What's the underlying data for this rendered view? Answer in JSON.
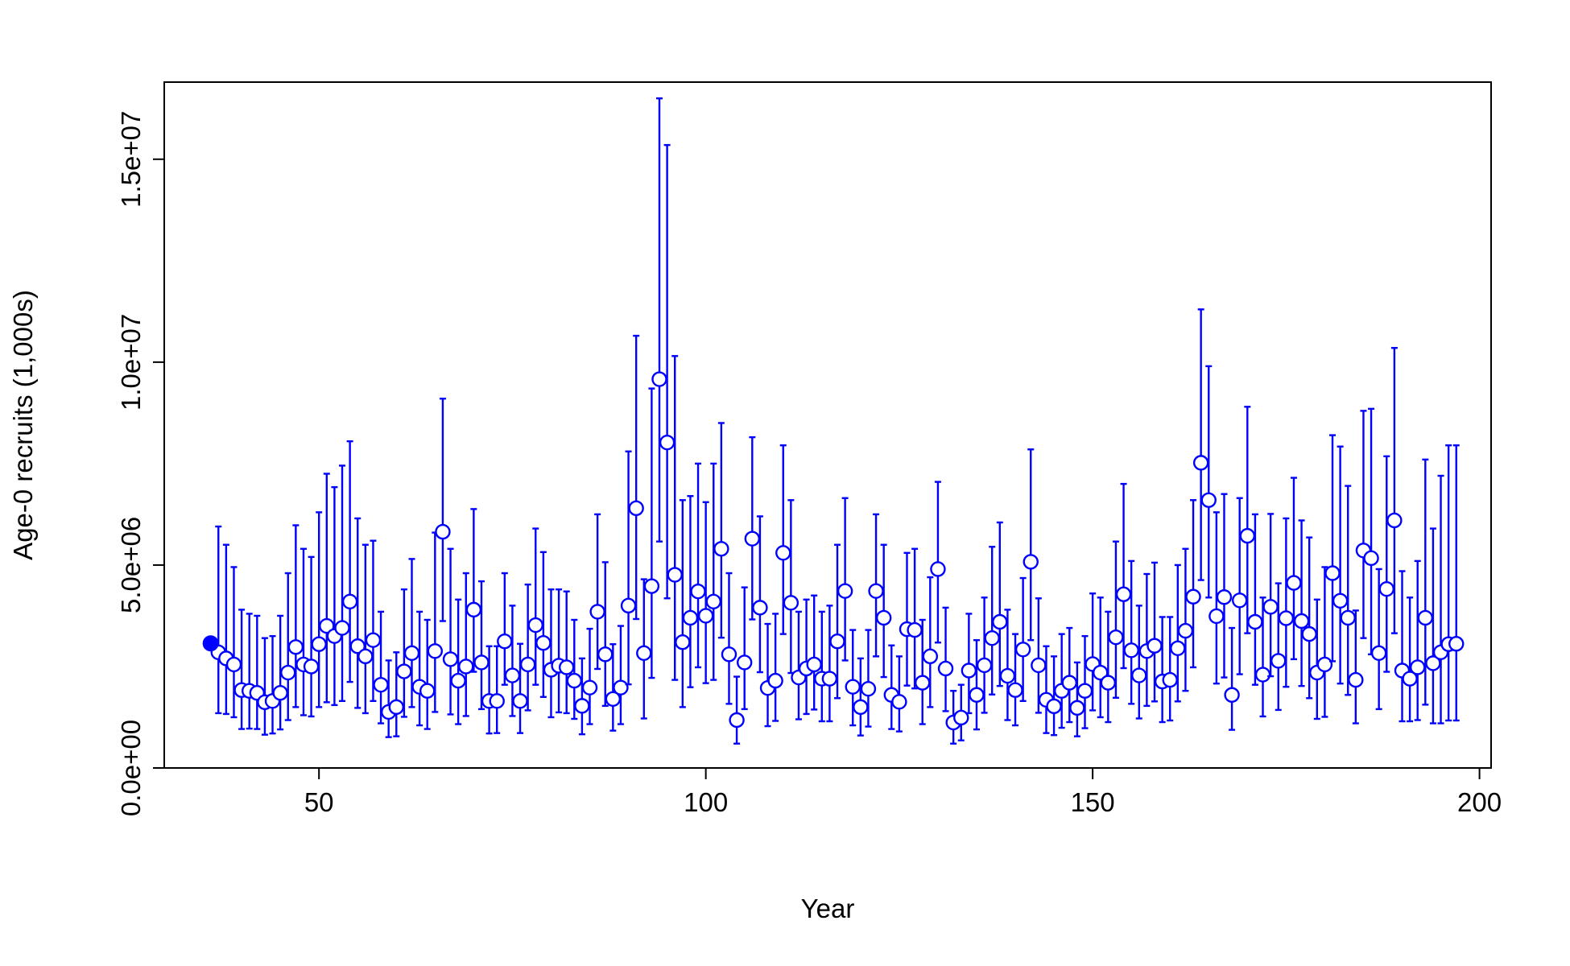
{
  "chart_data": {
    "type": "scatter",
    "title": "",
    "xlabel": "Year",
    "ylabel": "Age-0 recruits (1,000s)",
    "xlim": [
      30,
      201.5
    ],
    "ylim": [
      0,
      16900000
    ],
    "xticks": [
      {
        "value": 50,
        "label": "50"
      },
      {
        "value": 100,
        "label": "100"
      },
      {
        "value": 150,
        "label": "150"
      },
      {
        "value": 200,
        "label": "200"
      }
    ],
    "yticks": [
      {
        "value": 0,
        "label": "0.0e+00"
      },
      {
        "value": 5000000,
        "label": "5.0e+06"
      },
      {
        "value": 10000000,
        "label": "1.0e+07"
      },
      {
        "value": 15000000,
        "label": "1.5e+07"
      }
    ],
    "grid": false,
    "legend": "none",
    "colors": {
      "series": "#0000ff",
      "axis": "#000000"
    },
    "virgin_point": {
      "x": 36,
      "y": 3070000
    },
    "series": [
      {
        "marker": "open-circle-with-error-bars",
        "x": [
          37,
          38,
          39,
          40,
          41,
          42,
          43,
          44,
          45,
          46,
          47,
          48,
          49,
          50,
          51,
          52,
          53,
          54,
          55,
          56,
          57,
          58,
          59,
          60,
          61,
          62,
          63,
          64,
          65,
          66,
          67,
          68,
          69,
          70,
          71,
          72,
          73,
          74,
          75,
          76,
          77,
          78,
          79,
          80,
          81,
          82,
          83,
          84,
          85,
          86,
          87,
          88,
          89,
          90,
          91,
          92,
          93,
          94,
          95,
          96,
          97,
          98,
          99,
          100,
          101,
          102,
          103,
          104,
          105,
          106,
          107,
          108,
          109,
          110,
          111,
          112,
          113,
          114,
          115,
          116,
          117,
          118,
          119,
          120,
          121,
          122,
          123,
          124,
          125,
          126,
          127,
          128,
          129,
          130,
          131,
          132,
          133,
          134,
          135,
          136,
          137,
          138,
          139,
          140,
          141,
          142,
          143,
          144,
          145,
          146,
          147,
          148,
          149,
          150,
          151,
          152,
          153,
          154,
          155,
          156,
          157,
          158,
          159,
          160,
          161,
          162,
          163,
          164,
          165,
          166,
          167,
          168,
          169,
          170,
          171,
          172,
          173,
          174,
          175,
          176,
          177,
          178,
          179,
          180,
          181,
          182,
          183,
          184,
          185,
          186,
          187,
          188,
          189,
          190,
          191,
          192,
          193,
          194,
          195,
          196,
          197
        ],
        "y": [
          2850000,
          2700000,
          2550000,
          1920000,
          1900000,
          1850000,
          1620000,
          1650000,
          1850000,
          2350000,
          2980000,
          2550000,
          2500000,
          3050000,
          3500000,
          3250000,
          3450000,
          4100000,
          3000000,
          2750000,
          3150000,
          2050000,
          1380000,
          1500000,
          2380000,
          2830000,
          2000000,
          1900000,
          2880000,
          5820000,
          2680000,
          2150000,
          2500000,
          3900000,
          2600000,
          1650000,
          1650000,
          3120000,
          2280000,
          1650000,
          2550000,
          3520000,
          3080000,
          2420000,
          2520000,
          2480000,
          2150000,
          1530000,
          1980000,
          3850000,
          2800000,
          1700000,
          1980000,
          4000000,
          6400000,
          2830000,
          4480000,
          9580000,
          8020000,
          4760000,
          3100000,
          3700000,
          4350000,
          3750000,
          4100000,
          5400000,
          2800000,
          1180000,
          2600000,
          5650000,
          3950000,
          1970000,
          2150000,
          5300000,
          4070000,
          2230000,
          2450000,
          2550000,
          2200000,
          2200000,
          3120000,
          4360000,
          2000000,
          1500000,
          1950000,
          4360000,
          3700000,
          1800000,
          1630000,
          3420000,
          3400000,
          2100000,
          2750000,
          4900000,
          2450000,
          1120000,
          1240000,
          2400000,
          1800000,
          2530000,
          3200000,
          3600000,
          2270000,
          1920000,
          2920000,
          5080000,
          2530000,
          1680000,
          1520000,
          1900000,
          2100000,
          1480000,
          1900000,
          2560000,
          2350000,
          2100000,
          3220000,
          4280000,
          2900000,
          2280000,
          2880000,
          3010000,
          2130000,
          2170000,
          2950000,
          3380000,
          4220000,
          7520000,
          6600000,
          3740000,
          4210000,
          1800000,
          4130000,
          5720000,
          3600000,
          2300000,
          3970000,
          2640000,
          3690000,
          4560000,
          3620000,
          3300000,
          2350000,
          2550000,
          4800000,
          4120000,
          3700000,
          2170000,
          5360000,
          5170000,
          2830000,
          4410000,
          6100000,
          2400000,
          2200000,
          2480000,
          3700000,
          2580000,
          2850000,
          3050000,
          3060000
        ],
        "y_upper": [
          5950000,
          5500000,
          4950000,
          3900000,
          3800000,
          3750000,
          3200000,
          3250000,
          3750000,
          4800000,
          5980000,
          5400000,
          5200000,
          6300000,
          7250000,
          6920000,
          7450000,
          8050000,
          6150000,
          5500000,
          5600000,
          3850000,
          2650000,
          2850000,
          4400000,
          5150000,
          3850000,
          3650000,
          5800000,
          9100000,
          5400000,
          4150000,
          4800000,
          6380000,
          4600000,
          3000000,
          3000000,
          4800000,
          4000000,
          3060000,
          4520000,
          5900000,
          5320000,
          4400000,
          4400000,
          4350000,
          3650000,
          2700000,
          3430000,
          6250000,
          5070000,
          3050000,
          3500000,
          7800000,
          10650000,
          4650000,
          9350000,
          16500000,
          15350000,
          10150000,
          6600000,
          6700000,
          7500000,
          6550000,
          7500000,
          8500000,
          4800000,
          2250000,
          4450000,
          8150000,
          6200000,
          3550000,
          3800000,
          7950000,
          6600000,
          3850000,
          4150000,
          4250000,
          3850000,
          4000000,
          5500000,
          6650000,
          3400000,
          2700000,
          3400000,
          6250000,
          5500000,
          3020000,
          2750000,
          5300000,
          5400000,
          3650000,
          4700000,
          7050000,
          3950000,
          1900000,
          2050000,
          3800000,
          3150000,
          4200000,
          5450000,
          6050000,
          3900000,
          3300000,
          4680000,
          7850000,
          4180000,
          3000000,
          2750000,
          3300000,
          3450000,
          2600000,
          3250000,
          4300000,
          4200000,
          3850000,
          5580000,
          7000000,
          5100000,
          4000000,
          4780000,
          5060000,
          3720000,
          3720000,
          5000000,
          5400000,
          6600000,
          11300000,
          9900000,
          6300000,
          6750000,
          3450000,
          6650000,
          8900000,
          6250000,
          4200000,
          6260000,
          4550000,
          6150000,
          7150000,
          6100000,
          5680000,
          4150000,
          4950000,
          8200000,
          7920000,
          6950000,
          3880000,
          8800000,
          8850000,
          4900000,
          7680000,
          10350000,
          4850000,
          4200000,
          5100000,
          7600000,
          5900000,
          7200000,
          7950000,
          7950000
        ],
        "y_lower": [
          1350000,
          1330000,
          1250000,
          960000,
          970000,
          960000,
          820000,
          850000,
          950000,
          1180000,
          1500000,
          1300000,
          1270000,
          1500000,
          1620000,
          1550000,
          1650000,
          2120000,
          1480000,
          1350000,
          1650000,
          1100000,
          760000,
          780000,
          1260000,
          1500000,
          1050000,
          960000,
          1380000,
          3620000,
          1320000,
          1080000,
          1280000,
          2370000,
          1450000,
          850000,
          860000,
          2050000,
          1280000,
          860000,
          1420000,
          2050000,
          1750000,
          1250000,
          1370000,
          1350000,
          1210000,
          830000,
          1080000,
          2440000,
          1530000,
          920000,
          1080000,
          2060000,
          3670000,
          1220000,
          2220000,
          5580000,
          4180000,
          2170000,
          1500000,
          1990000,
          2480000,
          2090000,
          2170000,
          3210000,
          1580000,
          600000,
          1450000,
          3660000,
          2360000,
          1030000,
          1160000,
          3300000,
          2340000,
          1200000,
          1330000,
          1440000,
          1150000,
          1150000,
          1720000,
          2650000,
          1050000,
          800000,
          1020000,
          2750000,
          2240000,
          960000,
          900000,
          2030000,
          1960000,
          1080000,
          1500000,
          3090000,
          1400000,
          600000,
          680000,
          1350000,
          950000,
          1360000,
          1810000,
          2020000,
          1180000,
          1050000,
          1650000,
          3150000,
          1360000,
          860000,
          810000,
          990000,
          1130000,
          780000,
          980000,
          1420000,
          1250000,
          1130000,
          1730000,
          2460000,
          1580000,
          1220000,
          1530000,
          1640000,
          1130000,
          1170000,
          1640000,
          1900000,
          2480000,
          4630000,
          4200000,
          2080000,
          2230000,
          940000,
          2310000,
          3320000,
          2050000,
          1270000,
          2260000,
          1430000,
          2000000,
          2680000,
          2020000,
          1720000,
          1210000,
          1260000,
          2630000,
          2080000,
          1800000,
          1100000,
          3200000,
          2800000,
          1450000,
          2370000,
          3320000,
          1150000,
          1150000,
          1180000,
          1560000,
          1100000,
          1100000,
          1170000,
          1170000
        ]
      }
    ]
  }
}
